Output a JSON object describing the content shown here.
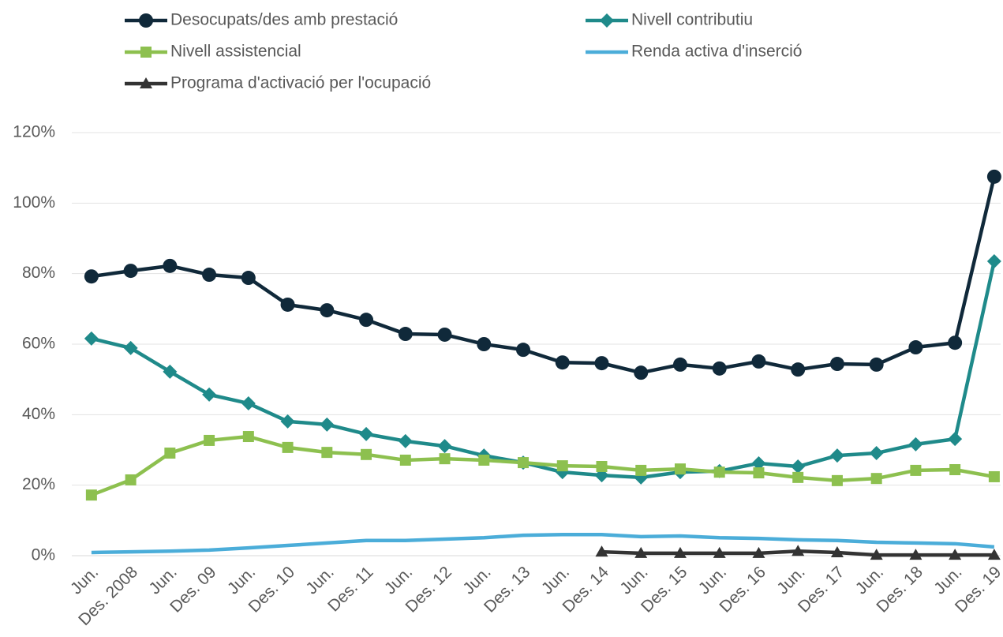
{
  "chart_data": {
    "type": "line",
    "categories": [
      "Jun.",
      "Des. 2008",
      "Jun.",
      "Des. 09",
      "Jun.",
      "Des. 10",
      "Jun.",
      "Des. 11",
      "Jun.",
      "Des. 12",
      "Jun.",
      "Des. 13",
      "Jun.",
      "Des. 14",
      "Jun.",
      "Des. 15",
      "Jun.",
      "Des. 16",
      "Jun.",
      "Des. 17",
      "Jun.",
      "Des. 18",
      "Jun.",
      "Des. 19"
    ],
    "series": [
      {
        "name": "Desocupats/des amb prestació",
        "color": "#10293a",
        "marker": "circle",
        "values": [
          79.2,
          80.8,
          82.2,
          79.7,
          78.8,
          71.2,
          69.6,
          66.9,
          62.9,
          62.7,
          60.0,
          58.4,
          54.8,
          54.6,
          51.9,
          54.2,
          53.1,
          55.1,
          52.8,
          54.4,
          54.2,
          59.1,
          60.4,
          107.5
        ]
      },
      {
        "name": "Nivell contributiu",
        "color": "#1f8a8a",
        "marker": "diamond",
        "values": [
          61.6,
          58.9,
          52.2,
          45.7,
          43.2,
          38.1,
          37.2,
          34.5,
          32.5,
          31.1,
          28.4,
          26.4,
          23.7,
          22.8,
          22.2,
          23.7,
          24.0,
          26.2,
          25.3,
          28.4,
          29.1,
          31.6,
          33.1,
          83.5
        ]
      },
      {
        "name": "Nivell assistencial",
        "color": "#8dc04f",
        "marker": "square",
        "values": [
          17.2,
          21.5,
          29.1,
          32.7,
          33.8,
          30.7,
          29.3,
          28.7,
          27.1,
          27.5,
          27.1,
          26.4,
          25.5,
          25.3,
          24.2,
          24.6,
          23.7,
          23.5,
          22.2,
          21.3,
          21.9,
          24.2,
          24.4,
          22.4
        ]
      },
      {
        "name": "Renda activa d'inserció",
        "color": "#4badd9",
        "marker": "none",
        "values": [
          0.9,
          1.1,
          1.3,
          1.6,
          2.2,
          2.9,
          3.6,
          4.3,
          4.3,
          4.7,
          5.1,
          5.8,
          6.0,
          6.0,
          5.4,
          5.6,
          5.1,
          4.9,
          4.5,
          4.3,
          3.8,
          3.6,
          3.4,
          2.5
        ]
      },
      {
        "name": "Programa d'activació per l'ocupació",
        "color": "#333333",
        "marker": "triangle",
        "values": [
          null,
          null,
          null,
          null,
          null,
          null,
          null,
          null,
          null,
          null,
          null,
          null,
          null,
          1.1,
          0.7,
          0.7,
          0.7,
          0.7,
          1.3,
          0.9,
          0.2,
          0.2,
          0.2,
          0.2
        ]
      }
    ],
    "ylim": [
      0,
      120
    ],
    "yticks": [
      {
        "value": 0,
        "label": "0%"
      },
      {
        "value": 20,
        "label": "20%"
      },
      {
        "value": 40,
        "label": "40%"
      },
      {
        "value": 60,
        "label": "60%"
      },
      {
        "value": 80,
        "label": "80%"
      },
      {
        "value": 100,
        "label": "100%"
      },
      {
        "value": 120,
        "label": "120%"
      }
    ],
    "grid": true,
    "legend": "top"
  }
}
